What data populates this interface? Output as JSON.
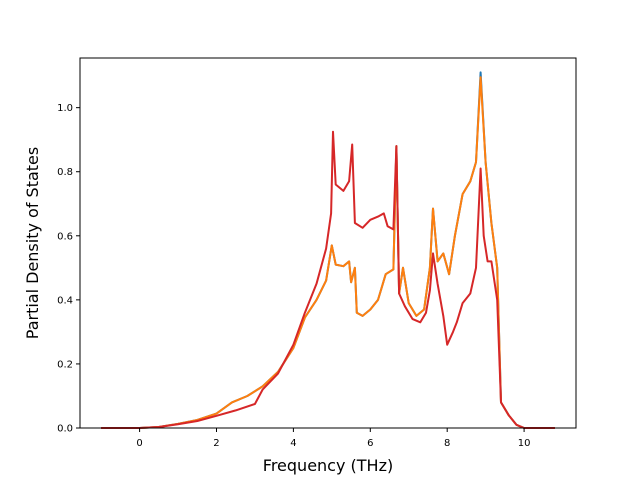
{
  "chart_data": {
    "type": "line",
    "title": "",
    "xlabel": "Frequency (THz)",
    "ylabel": "Partial Density of States",
    "xlim": [
      -1.55,
      11.35
    ],
    "ylim": [
      0.0,
      1.155
    ],
    "xticks": [
      "0",
      "2",
      "4",
      "6",
      "8",
      "10"
    ],
    "yticks": [
      "0.0",
      "0.2",
      "0.4",
      "0.6",
      "0.8",
      "1.0"
    ],
    "grid": false,
    "legend": "none",
    "series": [
      {
        "color": "#1f77b4",
        "points": [
          [
            -1.0,
            0.0
          ],
          [
            0.0,
            0.0
          ],
          [
            0.5,
            0.003
          ],
          [
            1.0,
            0.013
          ],
          [
            1.5,
            0.025
          ],
          [
            2.0,
            0.045
          ],
          [
            2.4,
            0.08
          ],
          [
            2.8,
            0.1
          ],
          [
            3.2,
            0.13
          ],
          [
            3.6,
            0.175
          ],
          [
            4.0,
            0.25
          ],
          [
            4.3,
            0.345
          ],
          [
            4.6,
            0.4
          ],
          [
            4.85,
            0.46
          ],
          [
            5.0,
            0.57
          ],
          [
            5.1,
            0.51
          ],
          [
            5.3,
            0.505
          ],
          [
            5.45,
            0.52
          ],
          [
            5.5,
            0.455
          ],
          [
            5.6,
            0.5
          ],
          [
            5.65,
            0.36
          ],
          [
            5.8,
            0.35
          ],
          [
            6.0,
            0.37
          ],
          [
            6.2,
            0.4
          ],
          [
            6.4,
            0.48
          ],
          [
            6.6,
            0.495
          ],
          [
            6.68,
            0.88
          ],
          [
            6.75,
            0.42
          ],
          [
            6.85,
            0.5
          ],
          [
            7.0,
            0.39
          ],
          [
            7.2,
            0.35
          ],
          [
            7.4,
            0.37
          ],
          [
            7.55,
            0.5
          ],
          [
            7.63,
            0.685
          ],
          [
            7.75,
            0.52
          ],
          [
            7.9,
            0.545
          ],
          [
            8.05,
            0.48
          ],
          [
            8.2,
            0.6
          ],
          [
            8.4,
            0.73
          ],
          [
            8.6,
            0.77
          ],
          [
            8.75,
            0.83
          ],
          [
            8.87,
            1.11
          ],
          [
            9.0,
            0.83
          ],
          [
            9.15,
            0.64
          ],
          [
            9.3,
            0.5
          ],
          [
            9.4,
            0.08
          ],
          [
            9.6,
            0.04
          ],
          [
            9.8,
            0.01
          ],
          [
            10.0,
            0.0
          ],
          [
            10.8,
            0.0
          ]
        ]
      },
      {
        "color": "#ff7f0e",
        "points": [
          [
            -1.0,
            0.0
          ],
          [
            0.0,
            0.0
          ],
          [
            0.5,
            0.003
          ],
          [
            1.0,
            0.013
          ],
          [
            1.5,
            0.025
          ],
          [
            2.0,
            0.045
          ],
          [
            2.4,
            0.08
          ],
          [
            2.8,
            0.1
          ],
          [
            3.2,
            0.13
          ],
          [
            3.6,
            0.175
          ],
          [
            4.0,
            0.25
          ],
          [
            4.3,
            0.345
          ],
          [
            4.6,
            0.4
          ],
          [
            4.85,
            0.46
          ],
          [
            5.0,
            0.57
          ],
          [
            5.1,
            0.51
          ],
          [
            5.3,
            0.505
          ],
          [
            5.45,
            0.52
          ],
          [
            5.5,
            0.455
          ],
          [
            5.6,
            0.5
          ],
          [
            5.65,
            0.36
          ],
          [
            5.8,
            0.35
          ],
          [
            6.0,
            0.37
          ],
          [
            6.2,
            0.4
          ],
          [
            6.4,
            0.48
          ],
          [
            6.6,
            0.495
          ],
          [
            6.68,
            0.88
          ],
          [
            6.75,
            0.42
          ],
          [
            6.85,
            0.5
          ],
          [
            7.0,
            0.39
          ],
          [
            7.2,
            0.35
          ],
          [
            7.4,
            0.37
          ],
          [
            7.55,
            0.5
          ],
          [
            7.63,
            0.685
          ],
          [
            7.75,
            0.52
          ],
          [
            7.9,
            0.545
          ],
          [
            8.05,
            0.48
          ],
          [
            8.2,
            0.6
          ],
          [
            8.4,
            0.73
          ],
          [
            8.6,
            0.77
          ],
          [
            8.75,
            0.83
          ],
          [
            8.87,
            1.095
          ],
          [
            9.0,
            0.83
          ],
          [
            9.15,
            0.64
          ],
          [
            9.3,
            0.5
          ],
          [
            9.4,
            0.08
          ],
          [
            9.6,
            0.04
          ],
          [
            9.8,
            0.01
          ],
          [
            10.0,
            0.0
          ],
          [
            10.8,
            0.0
          ]
        ]
      },
      {
        "color": "#d62728",
        "points": [
          [
            -1.0,
            0.0
          ],
          [
            0.0,
            0.0
          ],
          [
            0.5,
            0.003
          ],
          [
            1.0,
            0.012
          ],
          [
            1.5,
            0.022
          ],
          [
            2.0,
            0.038
          ],
          [
            2.5,
            0.055
          ],
          [
            3.0,
            0.075
          ],
          [
            3.2,
            0.12
          ],
          [
            3.6,
            0.17
          ],
          [
            4.0,
            0.26
          ],
          [
            4.3,
            0.36
          ],
          [
            4.6,
            0.45
          ],
          [
            4.85,
            0.56
          ],
          [
            4.98,
            0.67
          ],
          [
            5.03,
            0.925
          ],
          [
            5.1,
            0.76
          ],
          [
            5.3,
            0.74
          ],
          [
            5.45,
            0.77
          ],
          [
            5.53,
            0.885
          ],
          [
            5.6,
            0.64
          ],
          [
            5.8,
            0.625
          ],
          [
            6.0,
            0.65
          ],
          [
            6.2,
            0.66
          ],
          [
            6.35,
            0.67
          ],
          [
            6.45,
            0.63
          ],
          [
            6.6,
            0.62
          ],
          [
            6.68,
            0.88
          ],
          [
            6.75,
            0.42
          ],
          [
            6.9,
            0.38
          ],
          [
            7.1,
            0.34
          ],
          [
            7.3,
            0.33
          ],
          [
            7.45,
            0.36
          ],
          [
            7.55,
            0.43
          ],
          [
            7.63,
            0.545
          ],
          [
            7.75,
            0.45
          ],
          [
            7.9,
            0.35
          ],
          [
            8.0,
            0.26
          ],
          [
            8.15,
            0.3
          ],
          [
            8.25,
            0.33
          ],
          [
            8.4,
            0.39
          ],
          [
            8.6,
            0.42
          ],
          [
            8.75,
            0.5
          ],
          [
            8.87,
            0.81
          ],
          [
            8.95,
            0.6
          ],
          [
            9.05,
            0.52
          ],
          [
            9.15,
            0.52
          ],
          [
            9.3,
            0.4
          ],
          [
            9.4,
            0.08
          ],
          [
            9.6,
            0.04
          ],
          [
            9.8,
            0.01
          ],
          [
            10.0,
            0.0
          ],
          [
            10.8,
            0.0
          ]
        ]
      }
    ]
  }
}
